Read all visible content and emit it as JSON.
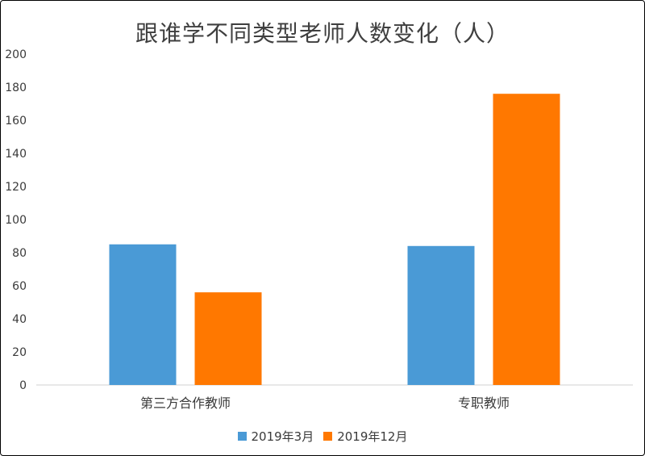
{
  "chart_data": {
    "type": "bar",
    "title": "跟谁学不同类型老师人数变化（人）",
    "categories": [
      "第三方合作教师",
      "专职教师"
    ],
    "series": [
      {
        "name": "2019年3月",
        "color": "#4a9ad6",
        "values": [
          85,
          84
        ]
      },
      {
        "name": "2019年12月",
        "color": "#ff7800",
        "values": [
          56,
          176
        ]
      }
    ],
    "ylim": [
      0,
      200
    ],
    "yticks": [
      0,
      20,
      40,
      60,
      80,
      100,
      120,
      140,
      160,
      180,
      200
    ],
    "grid": false,
    "legend": "bottom"
  }
}
